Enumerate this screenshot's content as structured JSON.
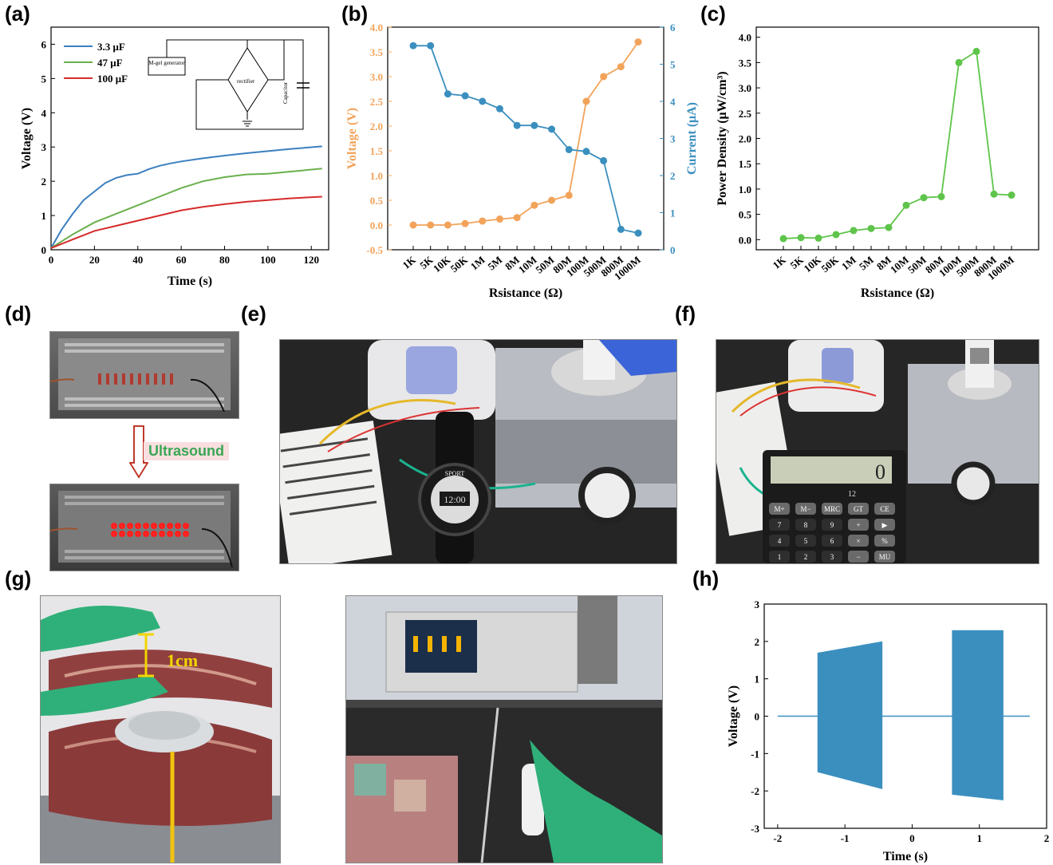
{
  "panels": {
    "a": "(a)",
    "b": "(b)",
    "c": "(c)",
    "d": "(d)",
    "e": "(e)",
    "f": "(f)",
    "g": "(g)",
    "h": "(h)"
  },
  "chart_data": [
    {
      "id": "a",
      "type": "line",
      "xlabel": "Time (s)",
      "ylabel": "Voltage (V)",
      "xlim": [
        0,
        128
      ],
      "ylim": [
        0,
        6.5
      ],
      "xticks": [
        0,
        20,
        40,
        60,
        80,
        100,
        120
      ],
      "yticks": [
        0,
        1,
        2,
        3,
        4,
        5,
        6
      ],
      "series": [
        {
          "name": "3.3 μF",
          "color": "#3b7fbf",
          "x": [
            0,
            5,
            10,
            15,
            20,
            25,
            30,
            35,
            40,
            45,
            50,
            55,
            60,
            70,
            80,
            90,
            100,
            110,
            125
          ],
          "y": [
            0.05,
            0.6,
            1.05,
            1.45,
            1.7,
            1.95,
            2.1,
            2.18,
            2.22,
            2.35,
            2.45,
            2.52,
            2.58,
            2.67,
            2.75,
            2.82,
            2.88,
            2.94,
            3.02
          ]
        },
        {
          "name": "47 μF",
          "color": "#6ab04c",
          "x": [
            0,
            10,
            20,
            30,
            40,
            50,
            60,
            70,
            80,
            90,
            100,
            110,
            125
          ],
          "y": [
            0.05,
            0.45,
            0.8,
            1.05,
            1.3,
            1.55,
            1.8,
            2.0,
            2.12,
            2.2,
            2.22,
            2.28,
            2.37
          ]
        },
        {
          "name": "100 μF",
          "color": "#d62b2b",
          "x": [
            0,
            10,
            20,
            30,
            40,
            50,
            60,
            70,
            80,
            90,
            100,
            110,
            125
          ],
          "y": [
            0.05,
            0.3,
            0.55,
            0.7,
            0.85,
            1.0,
            1.15,
            1.25,
            1.33,
            1.4,
            1.45,
            1.5,
            1.55
          ]
        }
      ],
      "inset": {
        "generator": "M-gel generator",
        "rectifier": "rectifier",
        "capacitor": "Capacitor"
      }
    },
    {
      "id": "b",
      "type": "line",
      "xlabel": "Rsistance (Ω)",
      "ylabel": "Voltage (V)",
      "y2label": "Current (μA)",
      "categories": [
        "1K",
        "5K",
        "10K",
        "50K",
        "1M",
        "5M",
        "8M",
        "10M",
        "50M",
        "80M",
        "100M",
        "500M",
        "800M",
        "1000M"
      ],
      "ylim": [
        -0.5,
        4.0
      ],
      "yticks": [
        "-0.5",
        "0.0",
        "0.5",
        "1.0",
        "1.5",
        "2.0",
        "2.5",
        "3.0",
        "3.5",
        "4.0"
      ],
      "y2lim": [
        0,
        6
      ],
      "y2ticks": [
        "0",
        "1",
        "2",
        "3",
        "4",
        "5",
        "6"
      ],
      "series": [
        {
          "name": "Voltage",
          "axis": "left",
          "color": "#f2a35a",
          "values": [
            0.0,
            0.0,
            0.0,
            0.03,
            0.08,
            0.12,
            0.15,
            0.4,
            0.5,
            0.6,
            2.5,
            3.0,
            3.2,
            3.7
          ]
        },
        {
          "name": "Current",
          "axis": "right",
          "color": "#3b8fbf",
          "values": [
            5.5,
            5.5,
            4.2,
            4.15,
            4.0,
            3.8,
            3.35,
            3.35,
            3.25,
            2.7,
            2.65,
            2.4,
            0.55,
            0.45
          ]
        }
      ]
    },
    {
      "id": "c",
      "type": "line",
      "xlabel": "Rsistance (Ω)",
      "ylabel": "Power Density (μW/cm³)",
      "categories": [
        "1K",
        "5K",
        "10K",
        "50K",
        "1M",
        "5M",
        "8M",
        "10M",
        "50M",
        "80M",
        "100M",
        "500M",
        "800M",
        "1000M"
      ],
      "ylim": [
        -0.2,
        4.2
      ],
      "yticks": [
        "0.0",
        "0.5",
        "1.0",
        "1.5",
        "2.0",
        "2.5",
        "3.0",
        "3.5",
        "4.0"
      ],
      "series": [
        {
          "name": "Power Density",
          "color": "#5ec44a",
          "values": [
            0.02,
            0.04,
            0.03,
            0.1,
            0.18,
            0.22,
            0.24,
            0.68,
            0.83,
            0.85,
            3.5,
            3.72,
            0.9,
            0.88
          ]
        }
      ]
    },
    {
      "id": "h",
      "type": "line",
      "xlabel": "Time (s)",
      "ylabel": "Voltage (V)",
      "xlim": [
        -2.2,
        2.0
      ],
      "ylim": [
        -3,
        3
      ],
      "xticks": [
        -2,
        -1,
        0,
        1,
        2
      ],
      "yticks": [
        -3,
        -2,
        -1,
        0,
        1,
        2,
        3
      ],
      "color": "#3b8fbf",
      "bursts": [
        {
          "start": -1.4,
          "end": -0.45,
          "top_start": 1.7,
          "top_end": 2.0,
          "bottom_start": -1.5,
          "bottom_end": -1.95
        },
        {
          "start": 0.6,
          "end": 1.35,
          "top_start": 2.3,
          "top_end": 2.3,
          "bottom_start": -2.1,
          "bottom_end": -2.25
        }
      ],
      "baseline_range": [
        -2.0,
        1.75
      ]
    }
  ],
  "photos": {
    "d_label": "Ultrasound",
    "e_watch_brand": "SPORT",
    "e_watch_time": "12:00",
    "f_calc_display": "0",
    "f_calc_digits": "12",
    "f_calc_keys": [
      "M+",
      "M−",
      "MRC",
      "GT",
      "CE",
      "7",
      "8",
      "9",
      "+",
      "▶",
      "4",
      "5",
      "6",
      "×",
      "%",
      "1",
      "2",
      "3",
      "−",
      "MU"
    ],
    "g_label": "1cm"
  }
}
